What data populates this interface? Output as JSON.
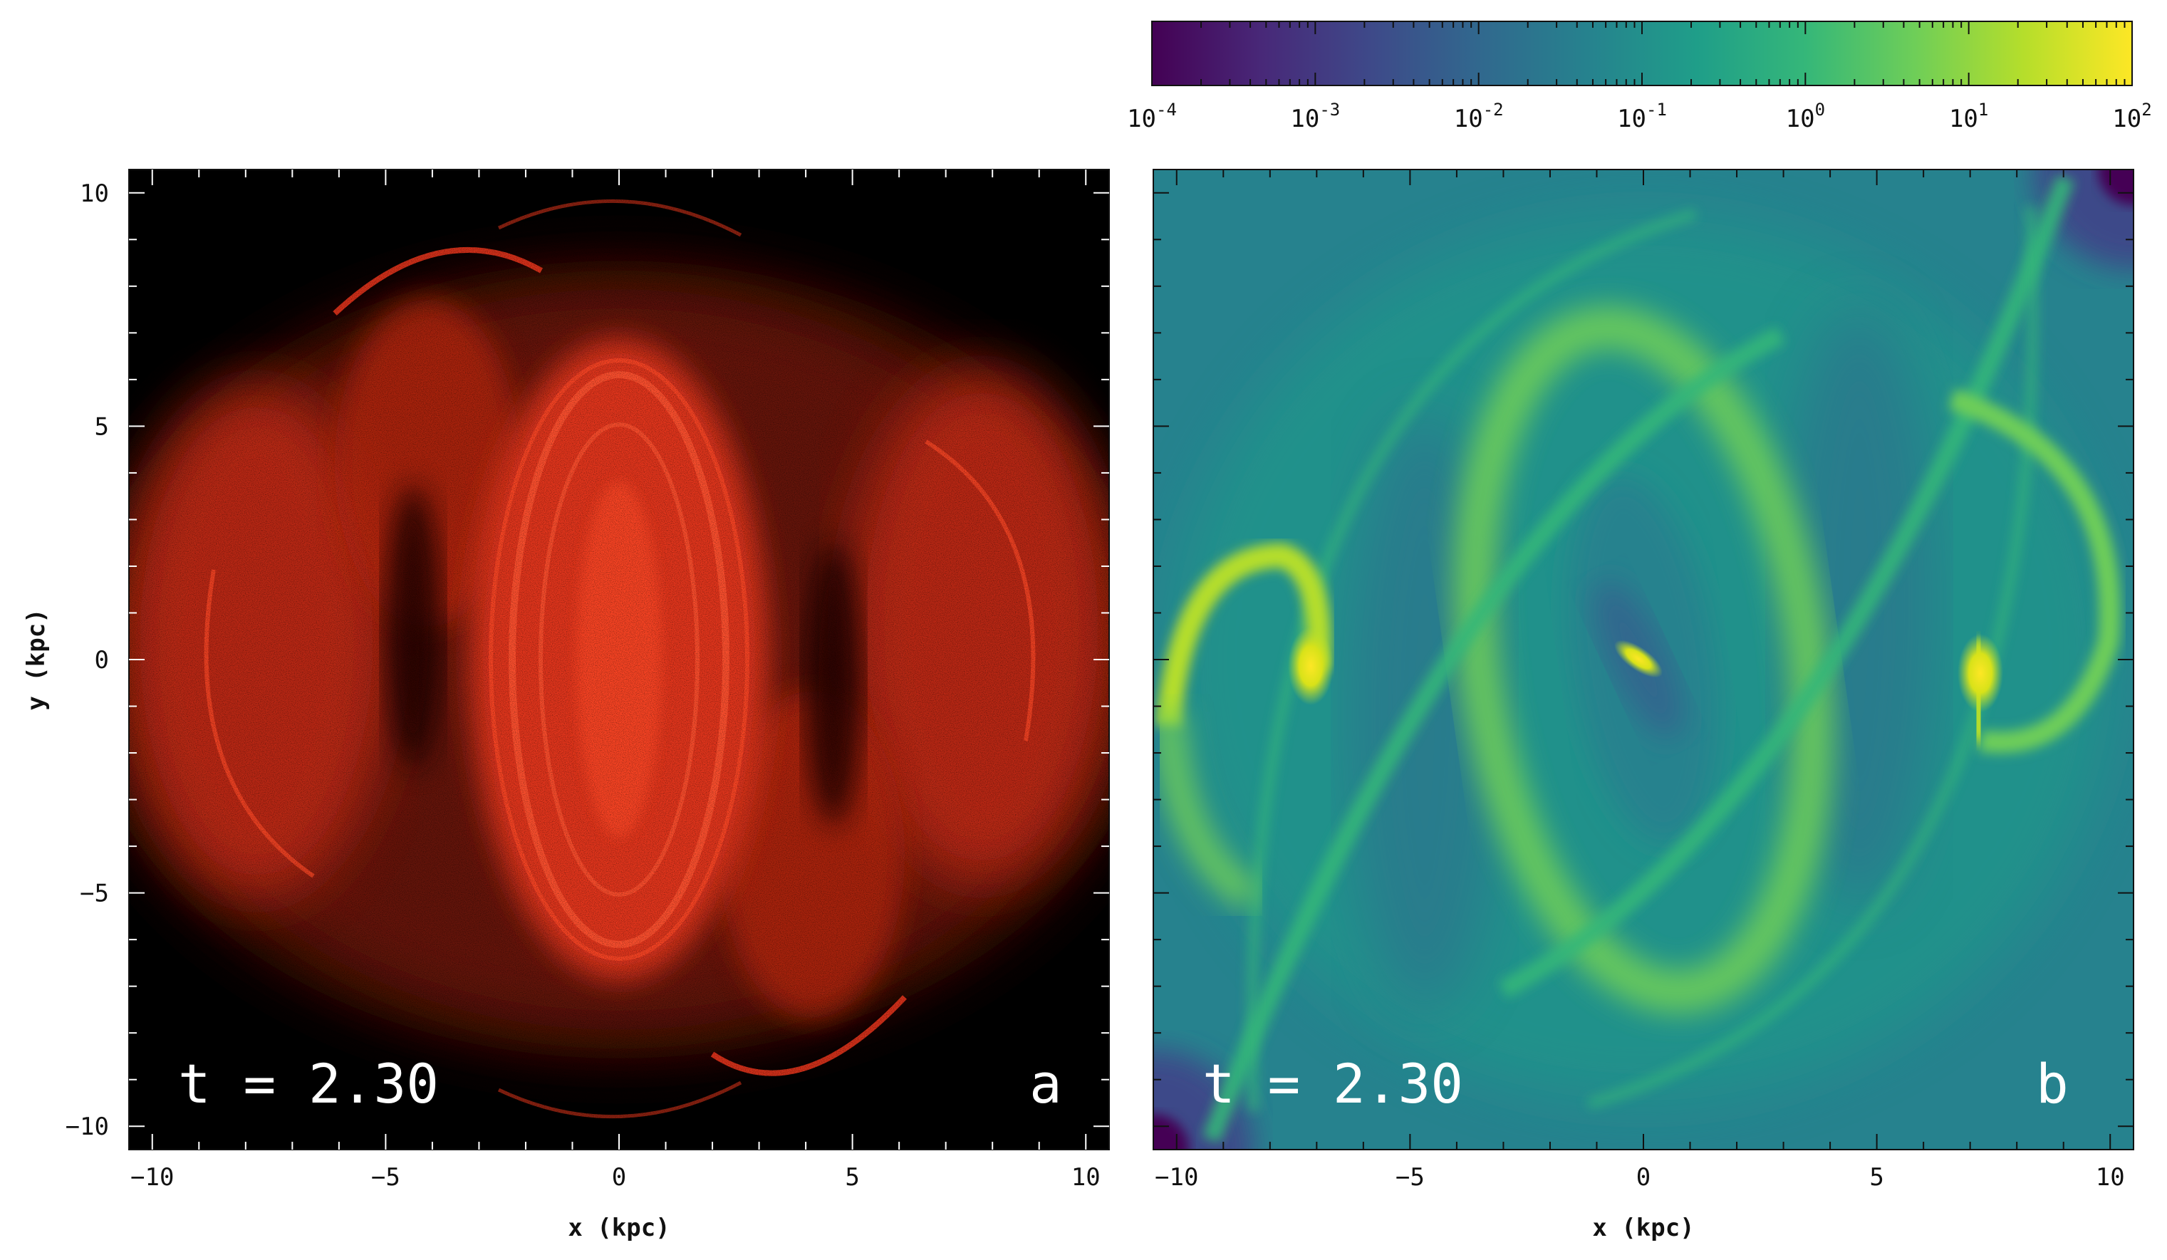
{
  "figure": {
    "colorbar": {
      "colormap": "viridis",
      "scale": "log",
      "range": [
        0.0001,
        100
      ],
      "tick_exponents": [
        "-4",
        "-3",
        "-2",
        "-1",
        "0",
        "1",
        "2"
      ],
      "tick_base": "10",
      "colors": [
        "#440154",
        "#482878",
        "#3e4989",
        "#31688e",
        "#26828e",
        "#1f9e89",
        "#35b779",
        "#6ece58",
        "#b5de2b",
        "#fde725"
      ]
    },
    "y_axis": {
      "label": "y (kpc)",
      "range": [
        -10.5,
        10.5
      ],
      "ticks": [
        "10",
        "5",
        "0",
        "−5",
        "−10"
      ],
      "tick_values": [
        10,
        5,
        0,
        -5,
        -10
      ]
    },
    "x_axis": {
      "label": "x (kpc)",
      "range": [
        -10.5,
        10.5
      ],
      "ticks": [
        "−10",
        "−5",
        "0",
        "5",
        "10"
      ],
      "tick_values": [
        -10,
        -5,
        0,
        5,
        10
      ]
    }
  },
  "chart_data": [
    {
      "type": "scatter",
      "panel": "a",
      "panel_letter": "a",
      "time_label": "t = 2.30",
      "xlabel": "x (kpc)",
      "ylabel": "y (kpc)",
      "xlim": [
        -10.5,
        10.5
      ],
      "ylim": [
        -10.5,
        10.5
      ],
      "background_color": "#000000",
      "point_color": "#ff3b1f",
      "grid": false
    },
    {
      "type": "heatmap",
      "panel": "b",
      "panel_letter": "b",
      "time_label": "t = 2.30",
      "xlabel": "x (kpc)",
      "xlim": [
        -10.5,
        10.5
      ],
      "ylim": [
        -10.5,
        10.5
      ],
      "colormap": "viridis",
      "color_scale": "log",
      "color_range": [
        0.0001,
        100
      ],
      "grid": false
    }
  ]
}
